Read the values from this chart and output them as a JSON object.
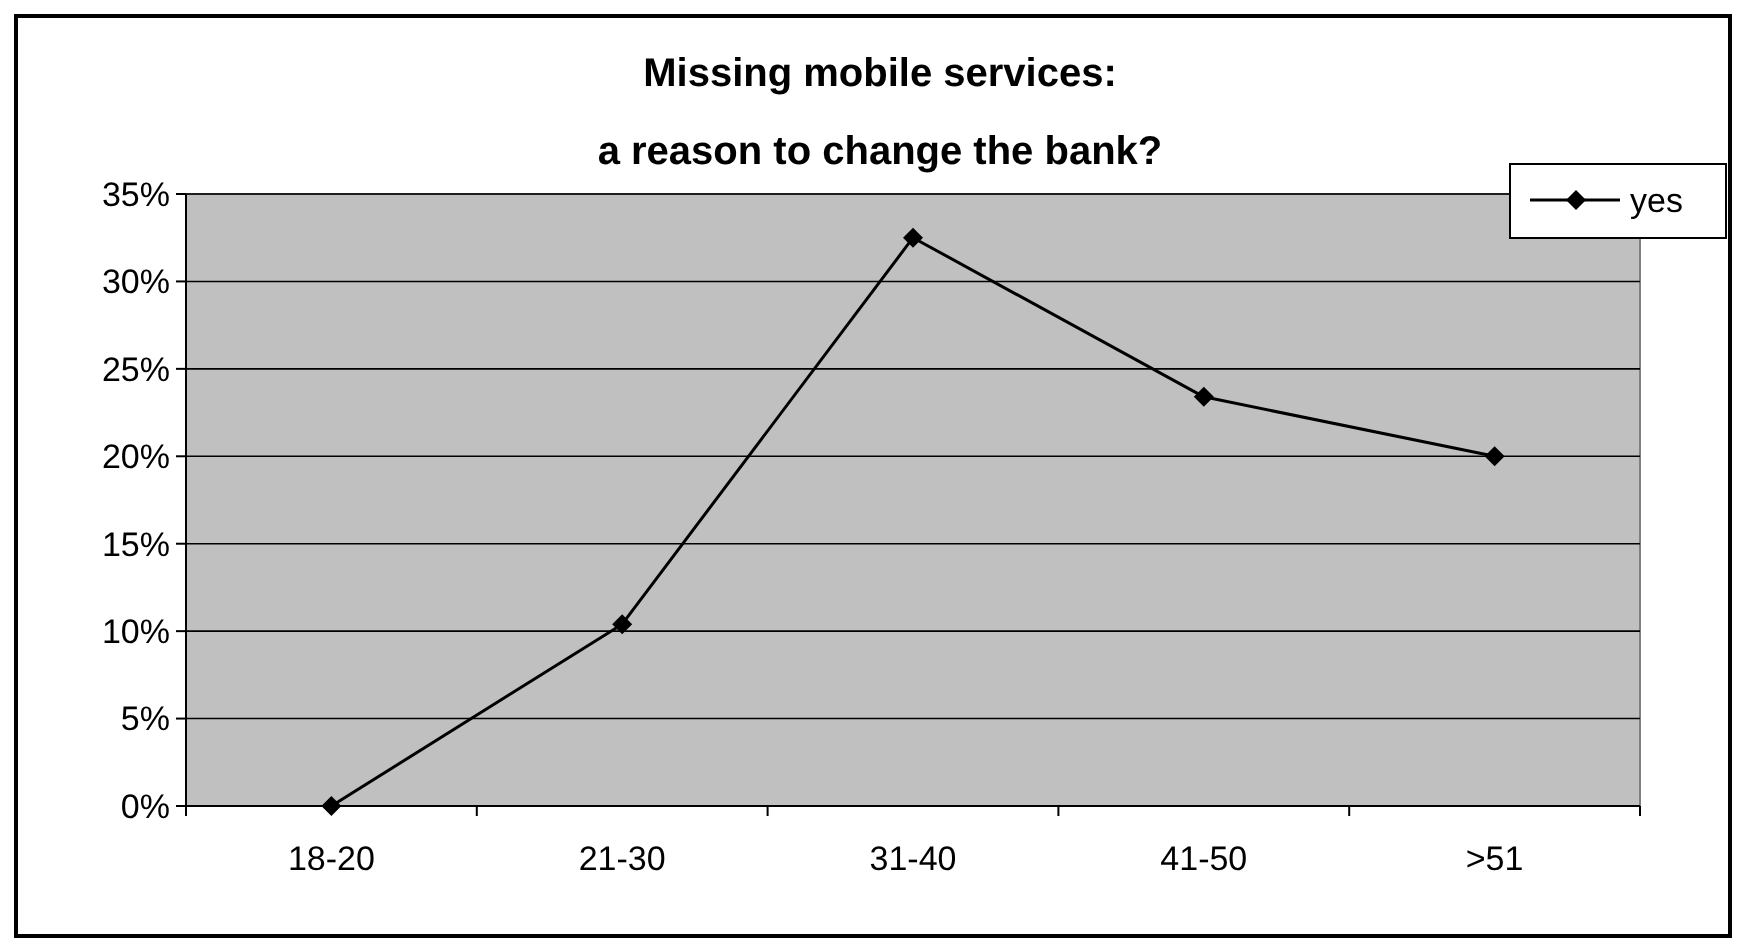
{
  "chart_data": {
    "type": "line",
    "title": "Missing mobile services:\na reason to change the bank?",
    "categories": [
      "18-20",
      "21-30",
      "31-40",
      "41-50",
      ">51"
    ],
    "series": [
      {
        "name": "yes",
        "color": "#000000",
        "values": [
          0,
          10.4,
          32.5,
          23.4,
          20
        ]
      }
    ],
    "ylim": [
      0,
      35
    ],
    "yticks": [
      {
        "value": 0,
        "label": "0%"
      },
      {
        "value": 5,
        "label": "5%"
      },
      {
        "value": 10,
        "label": "10%"
      },
      {
        "value": 15,
        "label": "15%"
      },
      {
        "value": 20,
        "label": "20%"
      },
      {
        "value": 25,
        "label": "25%"
      },
      {
        "value": 30,
        "label": "30%"
      },
      {
        "value": 35,
        "label": "35%"
      }
    ],
    "grid": "y",
    "legend": "top right",
    "marker": "diamond",
    "line_style": "solid"
  }
}
